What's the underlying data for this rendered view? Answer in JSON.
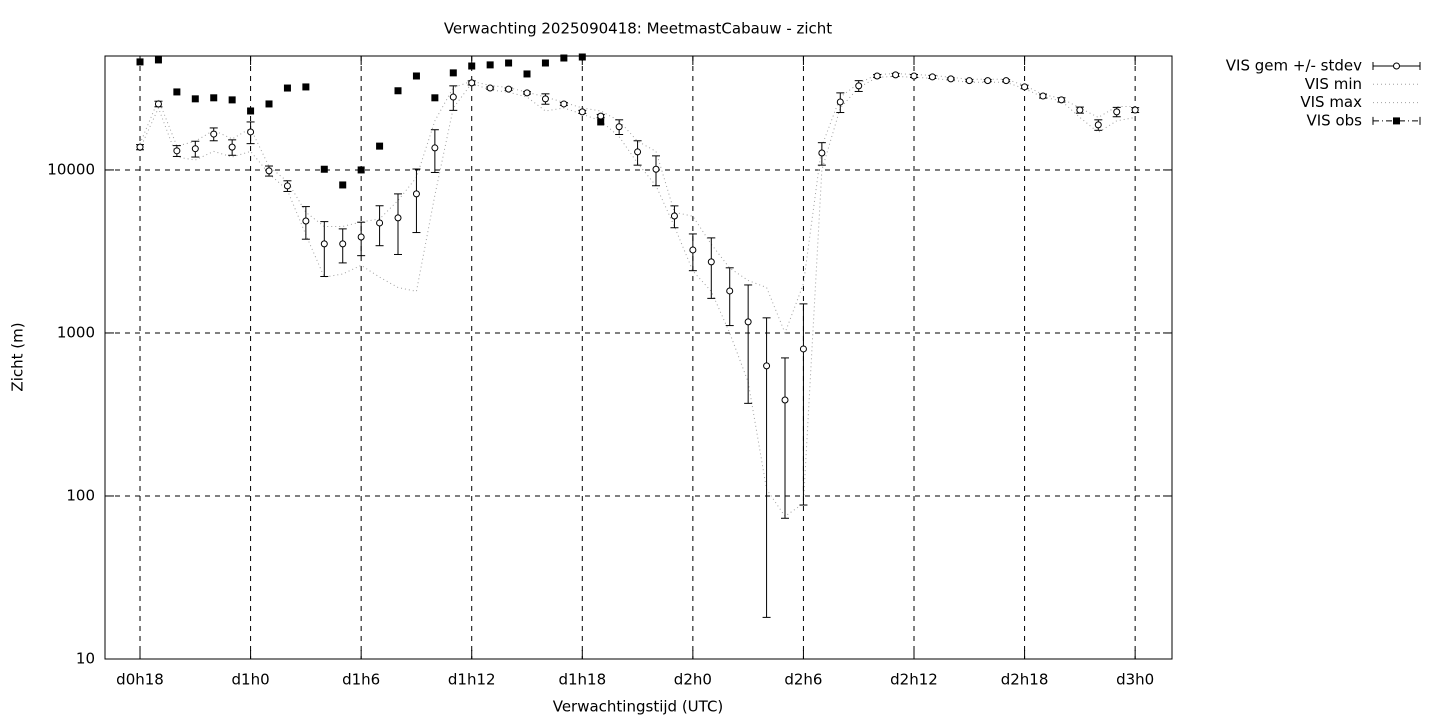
{
  "chart_data": {
    "type": "line",
    "title": "Verwachting 2025090418: MeetmastCabauw - zicht",
    "x_label": "Verwachtingstijd (UTC)",
    "y_label": "Zicht (m)",
    "log_y": true,
    "grid": true,
    "legend": "outside-top-right",
    "xlim": [
      16.1,
      74
    ],
    "ylim": [
      10,
      50000
    ],
    "xticks": [
      {
        "value": 18,
        "label": "d0h18"
      },
      {
        "value": 24,
        "label": "d1h0"
      },
      {
        "value": 30,
        "label": "d1h6"
      },
      {
        "value": 36,
        "label": "d1h12"
      },
      {
        "value": 42,
        "label": "d1h18"
      },
      {
        "value": 48,
        "label": "d2h0"
      },
      {
        "value": 54,
        "label": "d2h6"
      },
      {
        "value": 60,
        "label": "d2h12"
      },
      {
        "value": 66,
        "label": "d2h18"
      },
      {
        "value": 72,
        "label": "d3h0"
      }
    ],
    "yticks": [
      10,
      100,
      1000,
      10000
    ],
    "x": [
      18,
      19,
      20,
      21,
      22,
      23,
      24,
      25,
      26,
      27,
      28,
      29,
      30,
      31,
      32,
      33,
      34,
      35,
      36,
      37,
      38,
      39,
      40,
      41,
      42,
      43,
      44,
      45,
      46,
      47,
      48,
      49,
      50,
      51,
      52,
      53,
      54,
      55,
      56,
      57,
      58,
      59,
      60,
      61,
      62,
      63,
      64,
      65,
      66,
      67,
      68,
      69,
      70,
      71,
      72
    ],
    "series": [
      {
        "name": "VIS gem +/- stdev",
        "color": "#000000",
        "style": "errorbars",
        "values": [
          13800,
          25400,
          13100,
          13500,
          16600,
          13800,
          17100,
          9870,
          7980,
          4860,
          3520,
          3520,
          3880,
          4730,
          5080,
          7130,
          13650,
          28000,
          34200,
          31800,
          31300,
          29700,
          27300,
          25400,
          22700,
          21400,
          18400,
          12900,
          10100,
          5220,
          3230,
          2730,
          1810,
          1170,
          628,
          388,
          798,
          12700,
          26100,
          32800,
          37700,
          38300,
          37700,
          37200,
          36200,
          35300,
          35300,
          35300,
          32300,
          28400,
          26900,
          23300,
          18900,
          22700,
          23300
        ],
        "errors": [
          500,
          1000,
          1000,
          1500,
          1500,
          1500,
          2600,
          700,
          600,
          1100,
          1300,
          830,
          900,
          1300,
          2050,
          3000,
          4000,
          4800,
          1000,
          500,
          500,
          500,
          2000,
          500,
          500,
          500,
          1900,
          2200,
          2100,
          800,
          820,
          1100,
          700,
          800,
          610,
          315,
          710,
          2000,
          3600,
          2500,
          800,
          800,
          800,
          800,
          500,
          500,
          500,
          500,
          800,
          800,
          800,
          1000,
          1400,
          1500,
          800
        ]
      },
      {
        "name": "VIS min",
        "color": "#a0a0a0",
        "style": "dotted",
        "values": [
          13500,
          24000,
          12000,
          11500,
          13000,
          12000,
          13000,
          9500,
          7500,
          4000,
          2200,
          2300,
          2600,
          2200,
          1900,
          1800,
          7000,
          24000,
          34000,
          31000,
          30000,
          28000,
          23000,
          24000,
          22000,
          20000,
          16000,
          11000,
          8000,
          4500,
          2400,
          1800,
          1000,
          500,
          110,
          75,
          90,
          10000,
          24000,
          32000,
          37000,
          37500,
          37000,
          36500,
          35500,
          34500,
          34500,
          34500,
          31500,
          28000,
          26500,
          21000,
          17000,
          20000,
          21000
        ]
      },
      {
        "name": "VIS max",
        "color": "#a0a0a0",
        "style": "dotted",
        "values": [
          14500,
          27000,
          14000,
          15000,
          17500,
          15500,
          18000,
          10500,
          8500,
          5500,
          4500,
          4500,
          4800,
          5000,
          6500,
          9000,
          20000,
          32000,
          35000,
          33000,
          32000,
          30000,
          28000,
          26000,
          24000,
          23000,
          20000,
          15000,
          13000,
          5500,
          5200,
          3500,
          2500,
          2100,
          1900,
          1000,
          2000,
          14000,
          28000,
          34000,
          38500,
          39000,
          38500,
          38000,
          37000,
          36000,
          36000,
          36000,
          33000,
          29000,
          27500,
          24000,
          21000,
          24500,
          24500
        ]
      },
      {
        "name": "VIS obs",
        "color": "#000000",
        "style": "squares",
        "values": [
          46000,
          47300,
          30100,
          27300,
          27700,
          26900,
          23000,
          25400,
          31800,
          32300,
          10100,
          8090,
          10000,
          14000,
          30600,
          37700,
          27700,
          39400,
          43400,
          44100,
          45300,
          38800,
          45300,
          48600,
          49300,
          19700,
          null,
          null,
          null,
          null,
          null,
          null,
          null,
          null,
          null,
          null,
          null,
          null,
          null,
          null,
          null,
          null,
          null,
          null,
          null,
          null,
          null,
          null,
          null,
          null,
          null,
          null,
          null,
          null,
          null
        ]
      }
    ]
  }
}
